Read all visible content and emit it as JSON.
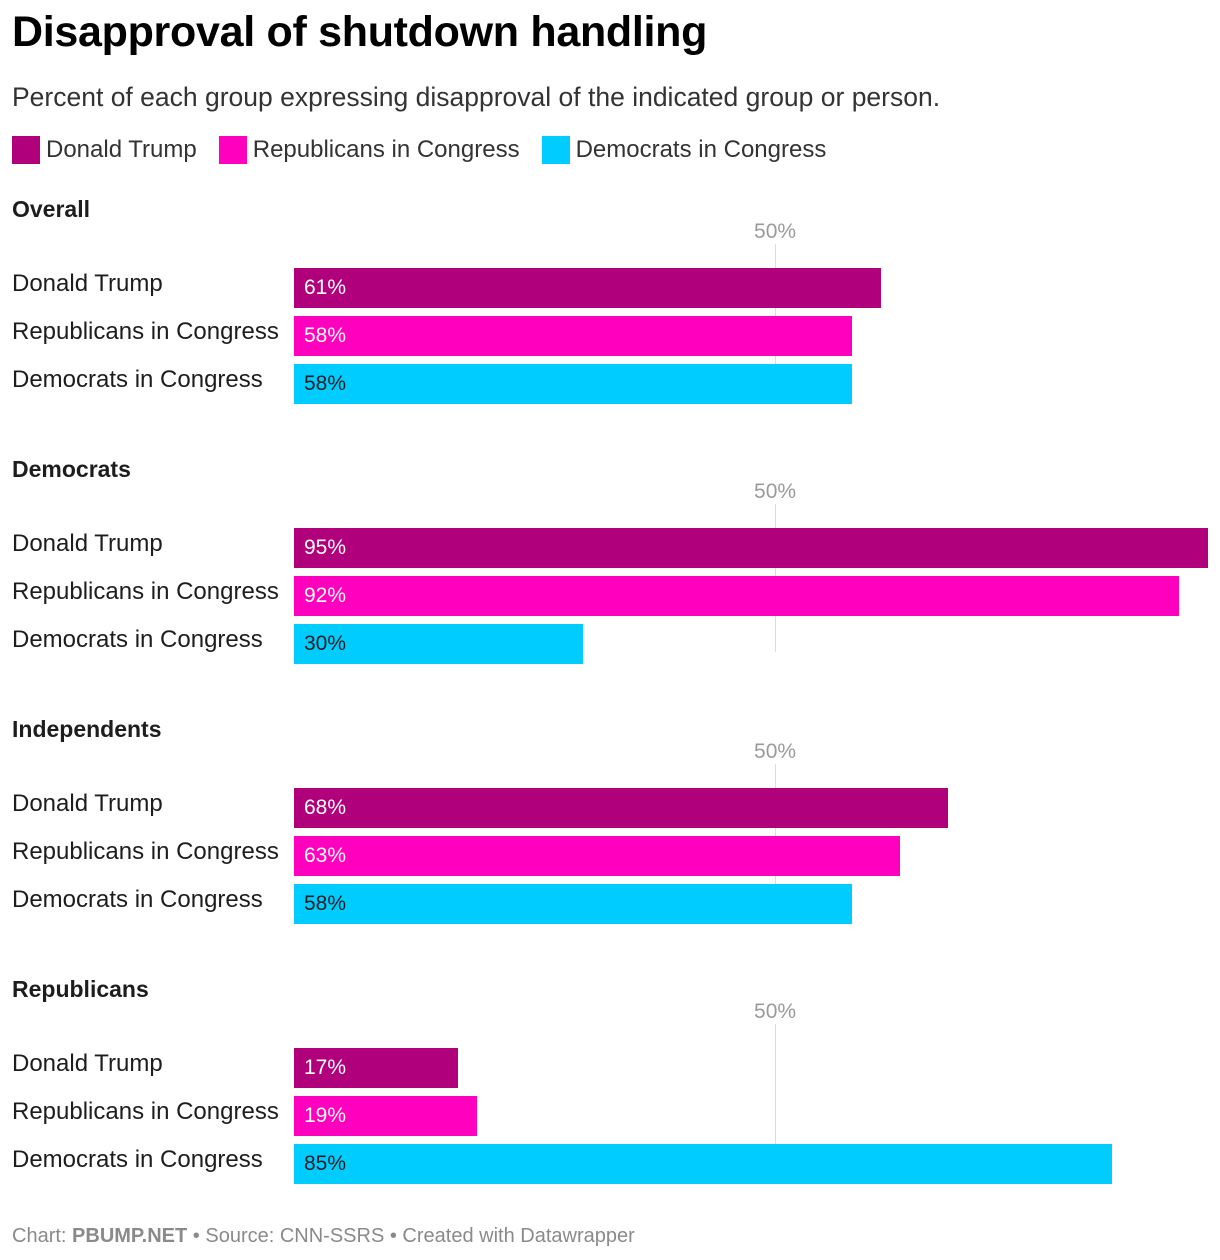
{
  "header": {
    "title": "Disapproval of shutdown handling",
    "subtitle": "Percent of each group expressing disapproval of the indicated group or person."
  },
  "legend": [
    {
      "label": "Donald Trump",
      "color": "#b0007c"
    },
    {
      "label": "Republicans in Congress",
      "color": "#ff00bf"
    },
    {
      "label": "Democrats in Congress",
      "color": "#00ccff"
    }
  ],
  "chart_data": {
    "type": "bar",
    "orientation": "horizontal",
    "xlim": [
      0,
      95
    ],
    "reference_tick": {
      "value": 50,
      "label": "50%"
    },
    "value_suffix": "%",
    "groups": [
      {
        "title": "Overall",
        "rows": [
          {
            "label": "Donald Trump",
            "value": 61,
            "value_label": "61%"
          },
          {
            "label": "Republicans in Congress",
            "value": 58,
            "value_label": "58%"
          },
          {
            "label": "Democrats in Congress",
            "value": 58,
            "value_label": "58%"
          }
        ]
      },
      {
        "title": "Democrats",
        "rows": [
          {
            "label": "Donald Trump",
            "value": 95,
            "value_label": "95%"
          },
          {
            "label": "Republicans in Congress",
            "value": 92,
            "value_label": "92%"
          },
          {
            "label": "Democrats in Congress",
            "value": 30,
            "value_label": "30%"
          }
        ]
      },
      {
        "title": "Independents",
        "rows": [
          {
            "label": "Donald Trump",
            "value": 68,
            "value_label": "68%"
          },
          {
            "label": "Republicans in Congress",
            "value": 63,
            "value_label": "63%"
          },
          {
            "label": "Democrats in Congress",
            "value": 58,
            "value_label": "58%"
          }
        ]
      },
      {
        "title": "Republicans",
        "rows": [
          {
            "label": "Donald Trump",
            "value": 17,
            "value_label": "17%"
          },
          {
            "label": "Republicans in Congress",
            "value": 19,
            "value_label": "19%"
          },
          {
            "label": "Democrats in Congress",
            "value": 85,
            "value_label": "85%"
          }
        ]
      }
    ],
    "bar_colors": [
      "#b0007c",
      "#ff00bf",
      "#00ccff"
    ],
    "value_text_colors": [
      "#ffffff",
      "#ffffff",
      "#1d1d1d"
    ]
  },
  "footer": {
    "chart_prefix": "Chart: ",
    "chart_credit": "PBUMP.NET",
    "rest": " • Source: CNN-SSRS • Created with Datawrapper"
  }
}
